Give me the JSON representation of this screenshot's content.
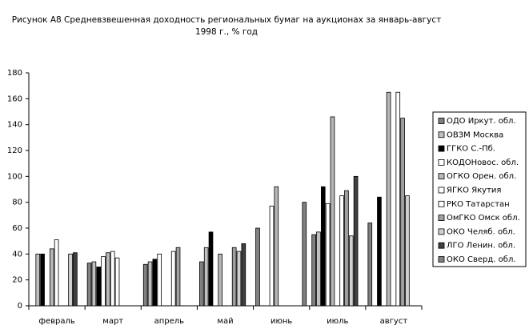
{
  "chart_data": {
    "type": "bar",
    "title": [
      "Рисунок А8 Средневзвешенная доходность региональных бумаг на аукционах  за январь-август",
      "1998 г., % год"
    ],
    "categories": [
      "февраль",
      "март",
      "апрель",
      "май",
      "июнь",
      "июль",
      "август"
    ],
    "series": [
      {
        "name": "ОДО Иркут. обл.",
        "color": "#808080",
        "values": [
          null,
          33,
          32,
          34,
          60,
          55,
          64
        ]
      },
      {
        "name": "ОВЗМ Москва",
        "color": "#c0c0c0",
        "values": [
          40,
          34,
          34,
          45,
          null,
          57,
          null
        ]
      },
      {
        "name": "ГГКО С.-Пб.",
        "color": "#000000",
        "values": [
          40,
          30,
          36,
          57,
          null,
          92,
          84
        ]
      },
      {
        "name": "КОДОНовос. обл.",
        "color": "#ffffff",
        "values": [
          null,
          38,
          40,
          null,
          77,
          79,
          null
        ]
      },
      {
        "name": "ОГКО Орен. обл.",
        "color": "#b8b8b8",
        "values": [
          44,
          41,
          null,
          40,
          92,
          146,
          165
        ]
      },
      {
        "name": "ЯГКО Якутия",
        "color": "#ffffff",
        "values": [
          51,
          42,
          null,
          null,
          null,
          null,
          null
        ]
      },
      {
        "name": "РКО Татарстан",
        "color": "#ffffff",
        "values": [
          null,
          37,
          42,
          null,
          null,
          85,
          165
        ]
      },
      {
        "name": "ОмГКО Омск обл.",
        "color": "#a0a0a0",
        "values": [
          null,
          null,
          45,
          45,
          null,
          89,
          145
        ]
      },
      {
        "name": "ОКО Челяб. обл.",
        "color": "#d0d0d0",
        "values": [
          40,
          null,
          null,
          42,
          null,
          54,
          85
        ]
      },
      {
        "name": "ЛГО Ленин. обл.",
        "color": "#404040",
        "values": [
          41,
          null,
          null,
          48,
          null,
          100,
          null
        ]
      },
      {
        "name": "ОКО Сверд. обл.",
        "color": "#808080",
        "values": [
          null,
          null,
          null,
          null,
          80,
          null,
          null
        ]
      }
    ],
    "ylim": [
      0,
      180
    ],
    "yticks": [
      0,
      20,
      40,
      60,
      80,
      100,
      120,
      140,
      160,
      180
    ],
    "grid": false,
    "legend": "right"
  }
}
